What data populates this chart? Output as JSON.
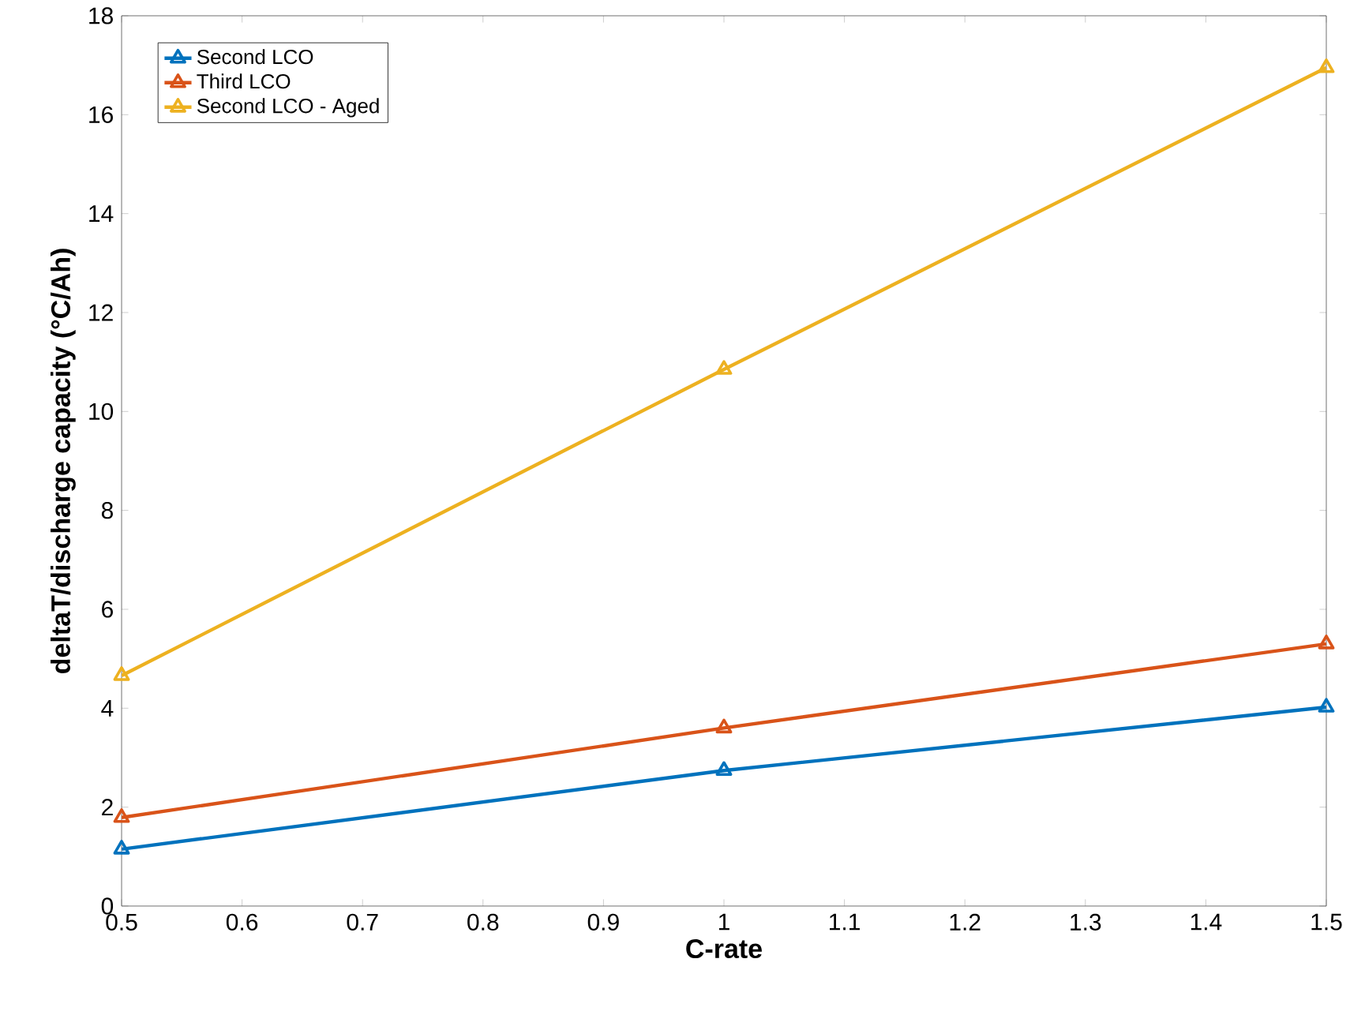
{
  "chart_data": {
    "type": "line",
    "xlabel": "C-rate",
    "ylabel": "deltaT/discharge capacity (°C/Ah)",
    "x": [
      0.5,
      1,
      1.5
    ],
    "series": [
      {
        "name": "Second LCO",
        "color": "#0072bd",
        "values": [
          1.15,
          2.74,
          4.02
        ]
      },
      {
        "name": "Third LCO",
        "color": "#d95319",
        "values": [
          1.79,
          3.6,
          5.3
        ]
      },
      {
        "name": "Second LCO - Aged",
        "color": "#edb120",
        "values": [
          4.66,
          10.85,
          16.95
        ]
      }
    ],
    "xlim": [
      0.5,
      1.5
    ],
    "xticks": [
      0.5,
      0.6,
      0.7,
      0.8,
      0.9,
      1,
      1.1,
      1.2,
      1.3,
      1.4,
      1.5
    ],
    "ylim": [
      0,
      18
    ],
    "yticks": [
      0,
      2,
      4,
      6,
      8,
      10,
      12,
      14,
      16,
      18
    ],
    "grid": false,
    "legend": "top left",
    "marker": "triangle",
    "line_style": "solid"
  }
}
